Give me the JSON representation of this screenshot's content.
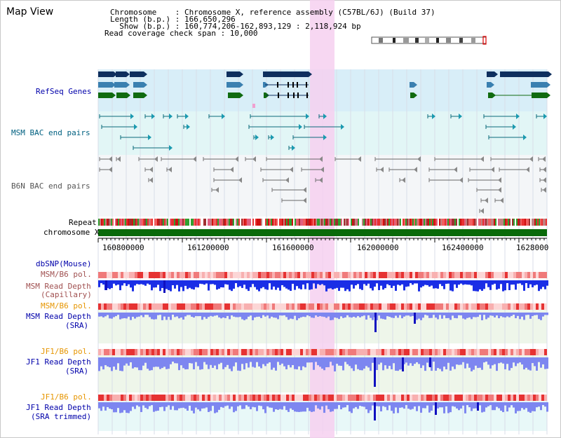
{
  "title": "Map View",
  "info": {
    "chromosome": "Chromosome    : Chromosome X, reference assembly (C57BL/6J) (Build 37)",
    "length": "Length (b.p.) : 166,650,296",
    "show": "  Show (b.p.) : 160,774,206-162,893,129 : 2,118,924 bp",
    "coverage": "Read coverage check span : 10,000"
  },
  "tracks": {
    "refseq": "RefSeq Genes",
    "msm_bac": "MSM BAC end pairs",
    "b6n_bac": "B6N BAC end pairs",
    "repeat": "Repeat",
    "chromosome": "chromosome X",
    "dbsnp": "dbSNP(Mouse)",
    "msm_b6_pol_1": "MSM/B6 pol.",
    "msm_read_depth_cap_1": "MSM Read Depth",
    "msm_read_depth_cap_2": "(Capillary)",
    "msm_b6_pol_2": "MSM/B6 pol.",
    "msm_read_depth_sra_1": "MSM Read Depth",
    "msm_read_depth_sra_2": "(SRA)",
    "jf1_b6_pol_1": "JF1/B6 pol.",
    "jf1_read_depth_sra_1": "JF1 Read Depth",
    "jf1_read_depth_sra_2": "(SRA)",
    "jf1_b6_pol_2": "JF1/B6 pol.",
    "jf1_read_depth_trim_1": "JF1 Read Depth",
    "jf1_read_depth_trim_2": "(SRA trimmed)"
  },
  "ruler": [
    "160800000",
    "161200000",
    "161600000",
    "162000000",
    "162400000",
    "1628000"
  ],
  "colors": {
    "highlight": "#f6d0f0",
    "refseq_band": "#d8eef8",
    "msm_band": "#e2f6f6",
    "b6n_band": "#f4f6f8",
    "chromosome": "#0a6a0a",
    "depth_blue": "#1a2ee6",
    "depth_light": "#7d86f0",
    "pol_red": "#e84848"
  }
}
